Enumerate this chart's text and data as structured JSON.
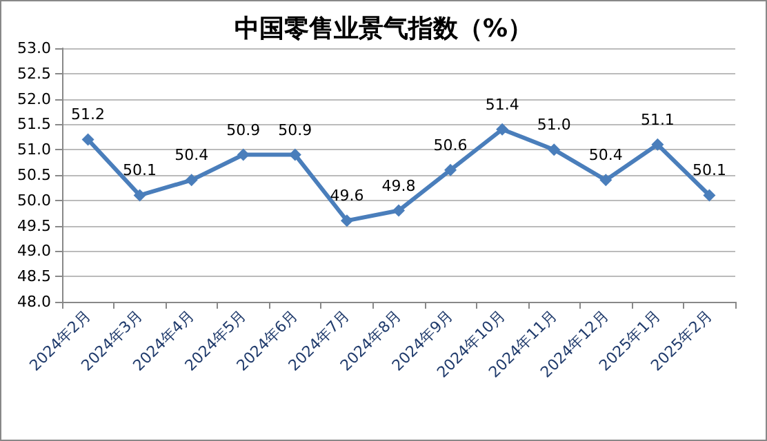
{
  "chart_data": {
    "type": "line",
    "title": "中国零售业景气指数（%）",
    "categories": [
      "2024年2月",
      "2024年3月",
      "2024年4月",
      "2024年5月",
      "2024年6月",
      "2024年7月",
      "2024年8月",
      "2024年9月",
      "2024年10月",
      "2024年11月",
      "2024年12月",
      "2025年1月",
      "2025年2月"
    ],
    "series": [
      {
        "color": "#4a7ebb",
        "values": [
          51.2,
          50.1,
          50.4,
          50.9,
          50.9,
          49.6,
          49.8,
          50.6,
          51.4,
          51.0,
          50.4,
          51.1,
          50.1
        ],
        "value_labels": [
          "51.2",
          "50.1",
          "50.4",
          "50.9",
          "50.9",
          "49.6",
          "49.8",
          "50.6",
          "51.4",
          "51.0",
          "50.4",
          "51.1",
          "50.1"
        ]
      }
    ],
    "ylim": [
      48,
      53
    ],
    "yticks": [
      {
        "value": 48,
        "label": "48.0"
      },
      {
        "value": 48.5,
        "label": "48.5"
      },
      {
        "value": 49,
        "label": "49.0"
      },
      {
        "value": 49.5,
        "label": "49.5"
      },
      {
        "value": 50,
        "label": "50.0"
      },
      {
        "value": 50.5,
        "label": "50.5"
      },
      {
        "value": 51,
        "label": "51.0"
      },
      {
        "value": 51.5,
        "label": "51.5"
      },
      {
        "value": 52,
        "label": "52.0"
      },
      {
        "value": 52.5,
        "label": "52.5"
      },
      {
        "value": 53,
        "label": "53.0"
      }
    ],
    "grid": "y",
    "marker": "diamond",
    "line_style": "solid"
  }
}
